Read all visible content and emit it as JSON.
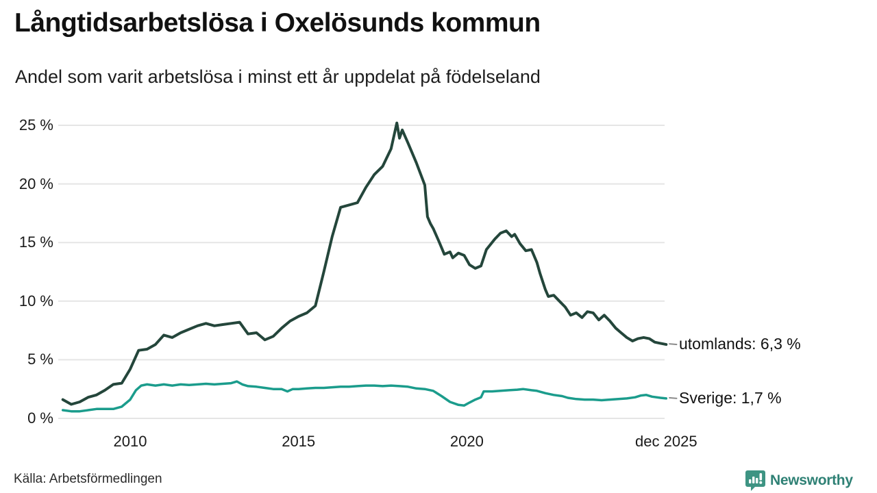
{
  "header": {
    "title": "Långtidsarbetslösa i Oxelösunds kommun",
    "subtitle": "Andel som varit arbetslösa i minst ett år uppdelat på födelseland"
  },
  "footer": {
    "source": "Källa: Arbetsförmedlingen",
    "brand": "Newsworthy"
  },
  "colors": {
    "utomlands_line": "#24463B",
    "sverige_line": "#1B9C8C",
    "grid": "#E5E5E5",
    "label_dash": "#8A8A8A",
    "brand_icon": "#3E9483",
    "brand_text": "#2F8175"
  },
  "chart_data": {
    "type": "line",
    "title": "Långtidsarbetslösa i Oxelösunds kommun",
    "subtitle": "Andel som varit arbetslösa i minst ett år uppdelat på födelseland",
    "unit": "%",
    "xlim": [
      2008.0,
      2025.92
    ],
    "ylim": [
      0,
      25.5
    ],
    "grid": "horizontal",
    "legend_position": "right-end-labels",
    "y_ticks": [
      {
        "label": "0 %",
        "value": 0
      },
      {
        "label": "5 %",
        "value": 5
      },
      {
        "label": "10 %",
        "value": 10
      },
      {
        "label": "15 %",
        "value": 15
      },
      {
        "label": "20 %",
        "value": 20
      },
      {
        "label": "25 %",
        "value": 25
      }
    ],
    "x_ticks": [
      {
        "label": "2010",
        "year": 2010
      },
      {
        "label": "2015",
        "year": 2015
      },
      {
        "label": "2020",
        "year": 2020
      },
      {
        "label": "dec 2025",
        "year": 2025.92
      }
    ],
    "series": [
      {
        "name": "utomlands",
        "end_label": "utomlands: 6,3 %",
        "end_value_text": "6,3 %",
        "color": "#24463B",
        "stroke_width": 4,
        "points": [
          [
            2008.0,
            1.6
          ],
          [
            2008.25,
            1.2
          ],
          [
            2008.5,
            1.4
          ],
          [
            2008.75,
            1.8
          ],
          [
            2009.0,
            2.0
          ],
          [
            2009.25,
            2.4
          ],
          [
            2009.5,
            2.9
          ],
          [
            2009.75,
            3.0
          ],
          [
            2010.0,
            4.2
          ],
          [
            2010.25,
            5.8
          ],
          [
            2010.5,
            5.9
          ],
          [
            2010.75,
            6.3
          ],
          [
            2011.0,
            7.1
          ],
          [
            2011.25,
            6.9
          ],
          [
            2011.5,
            7.3
          ],
          [
            2011.75,
            7.6
          ],
          [
            2012.0,
            7.9
          ],
          [
            2012.25,
            8.1
          ],
          [
            2012.5,
            7.9
          ],
          [
            2012.75,
            8.0
          ],
          [
            2013.0,
            8.1
          ],
          [
            2013.25,
            8.2
          ],
          [
            2013.5,
            7.2
          ],
          [
            2013.75,
            7.3
          ],
          [
            2014.0,
            6.7
          ],
          [
            2014.25,
            7.0
          ],
          [
            2014.5,
            7.7
          ],
          [
            2014.75,
            8.3
          ],
          [
            2015.0,
            8.7
          ],
          [
            2015.25,
            9.0
          ],
          [
            2015.5,
            9.6
          ],
          [
            2015.75,
            12.5
          ],
          [
            2016.0,
            15.5
          ],
          [
            2016.25,
            18.0
          ],
          [
            2016.5,
            18.2
          ],
          [
            2016.75,
            18.4
          ],
          [
            2017.0,
            19.7
          ],
          [
            2017.25,
            20.8
          ],
          [
            2017.5,
            21.5
          ],
          [
            2017.75,
            23.0
          ],
          [
            2017.92,
            25.2
          ],
          [
            2018.0,
            23.9
          ],
          [
            2018.08,
            24.6
          ],
          [
            2018.25,
            23.5
          ],
          [
            2018.5,
            21.8
          ],
          [
            2018.75,
            19.9
          ],
          [
            2018.83,
            17.2
          ],
          [
            2018.92,
            16.6
          ],
          [
            2019.0,
            16.2
          ],
          [
            2019.17,
            15.1
          ],
          [
            2019.33,
            14.0
          ],
          [
            2019.5,
            14.2
          ],
          [
            2019.58,
            13.7
          ],
          [
            2019.75,
            14.1
          ],
          [
            2019.92,
            13.9
          ],
          [
            2020.08,
            13.1
          ],
          [
            2020.25,
            12.8
          ],
          [
            2020.42,
            13.0
          ],
          [
            2020.58,
            14.4
          ],
          [
            2020.83,
            15.3
          ],
          [
            2021.0,
            15.8
          ],
          [
            2021.17,
            16.0
          ],
          [
            2021.33,
            15.5
          ],
          [
            2021.42,
            15.7
          ],
          [
            2021.58,
            14.9
          ],
          [
            2021.75,
            14.3
          ],
          [
            2021.92,
            14.4
          ],
          [
            2022.08,
            13.3
          ],
          [
            2022.17,
            12.4
          ],
          [
            2022.33,
            11.0
          ],
          [
            2022.42,
            10.4
          ],
          [
            2022.58,
            10.5
          ],
          [
            2022.75,
            10.0
          ],
          [
            2022.92,
            9.5
          ],
          [
            2023.08,
            8.8
          ],
          [
            2023.25,
            9.0
          ],
          [
            2023.42,
            8.6
          ],
          [
            2023.58,
            9.1
          ],
          [
            2023.75,
            9.0
          ],
          [
            2023.92,
            8.4
          ],
          [
            2024.08,
            8.8
          ],
          [
            2024.25,
            8.3
          ],
          [
            2024.42,
            7.7
          ],
          [
            2024.58,
            7.3
          ],
          [
            2024.75,
            6.9
          ],
          [
            2024.92,
            6.6
          ],
          [
            2025.08,
            6.8
          ],
          [
            2025.25,
            6.9
          ],
          [
            2025.42,
            6.8
          ],
          [
            2025.58,
            6.5
          ],
          [
            2025.75,
            6.4
          ],
          [
            2025.92,
            6.3
          ]
        ]
      },
      {
        "name": "Sverige",
        "end_label": "Sverige: 1,7 %",
        "end_value_text": "1,7 %",
        "color": "#1B9C8C",
        "stroke_width": 3.5,
        "points": [
          [
            2008.0,
            0.7
          ],
          [
            2008.25,
            0.6
          ],
          [
            2008.5,
            0.6
          ],
          [
            2008.75,
            0.7
          ],
          [
            2009.0,
            0.8
          ],
          [
            2009.25,
            0.8
          ],
          [
            2009.5,
            0.8
          ],
          [
            2009.75,
            1.0
          ],
          [
            2010.0,
            1.6
          ],
          [
            2010.17,
            2.4
          ],
          [
            2010.33,
            2.8
          ],
          [
            2010.5,
            2.9
          ],
          [
            2010.75,
            2.8
          ],
          [
            2011.0,
            2.9
          ],
          [
            2011.25,
            2.8
          ],
          [
            2011.5,
            2.9
          ],
          [
            2011.75,
            2.85
          ],
          [
            2012.0,
            2.9
          ],
          [
            2012.25,
            2.95
          ],
          [
            2012.5,
            2.9
          ],
          [
            2012.75,
            2.95
          ],
          [
            2013.0,
            3.0
          ],
          [
            2013.17,
            3.15
          ],
          [
            2013.33,
            2.9
          ],
          [
            2013.5,
            2.75
          ],
          [
            2013.75,
            2.7
          ],
          [
            2014.0,
            2.6
          ],
          [
            2014.25,
            2.5
          ],
          [
            2014.5,
            2.5
          ],
          [
            2014.67,
            2.3
          ],
          [
            2014.83,
            2.5
          ],
          [
            2015.0,
            2.5
          ],
          [
            2015.25,
            2.55
          ],
          [
            2015.5,
            2.6
          ],
          [
            2015.75,
            2.6
          ],
          [
            2016.0,
            2.65
          ],
          [
            2016.25,
            2.7
          ],
          [
            2016.5,
            2.7
          ],
          [
            2016.75,
            2.75
          ],
          [
            2017.0,
            2.8
          ],
          [
            2017.25,
            2.8
          ],
          [
            2017.5,
            2.75
          ],
          [
            2017.75,
            2.8
          ],
          [
            2018.0,
            2.75
          ],
          [
            2018.25,
            2.7
          ],
          [
            2018.5,
            2.55
          ],
          [
            2018.75,
            2.5
          ],
          [
            2019.0,
            2.35
          ],
          [
            2019.25,
            1.9
          ],
          [
            2019.5,
            1.4
          ],
          [
            2019.75,
            1.15
          ],
          [
            2019.92,
            1.1
          ],
          [
            2020.08,
            1.35
          ],
          [
            2020.25,
            1.6
          ],
          [
            2020.42,
            1.8
          ],
          [
            2020.5,
            2.3
          ],
          [
            2020.75,
            2.3
          ],
          [
            2021.0,
            2.35
          ],
          [
            2021.25,
            2.4
          ],
          [
            2021.5,
            2.45
          ],
          [
            2021.67,
            2.5
          ],
          [
            2021.92,
            2.4
          ],
          [
            2022.08,
            2.35
          ],
          [
            2022.33,
            2.15
          ],
          [
            2022.58,
            2.0
          ],
          [
            2022.83,
            1.9
          ],
          [
            2023.0,
            1.75
          ],
          [
            2023.25,
            1.65
          ],
          [
            2023.5,
            1.6
          ],
          [
            2023.75,
            1.6
          ],
          [
            2024.0,
            1.55
          ],
          [
            2024.25,
            1.6
          ],
          [
            2024.5,
            1.65
          ],
          [
            2024.75,
            1.7
          ],
          [
            2025.0,
            1.8
          ],
          [
            2025.17,
            1.95
          ],
          [
            2025.33,
            2.0
          ],
          [
            2025.5,
            1.85
          ],
          [
            2025.75,
            1.75
          ],
          [
            2025.92,
            1.7
          ]
        ]
      }
    ]
  }
}
